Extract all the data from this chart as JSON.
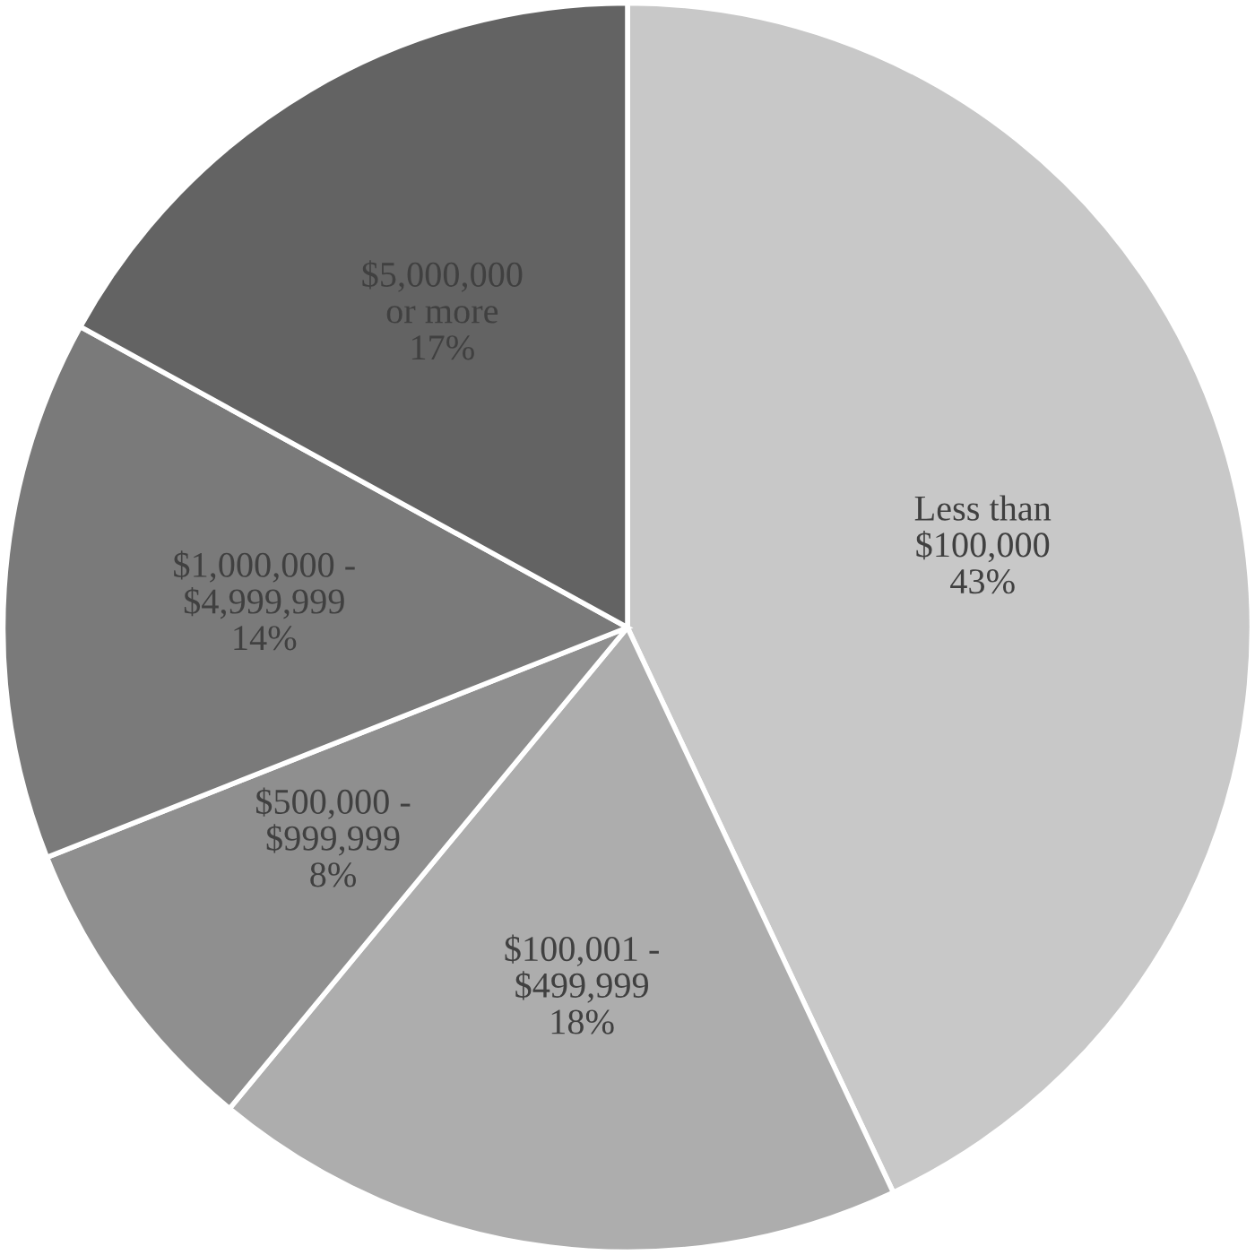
{
  "chart_data": {
    "type": "pie",
    "categories": [
      "Less than\n$100,000",
      "$100,001 -\n$499,999",
      "$500,000 -\n$999,999",
      "$1,000,000 -\n$4,999,999",
      "$5,000,000\nor more"
    ],
    "values": [
      43,
      18,
      8,
      14,
      17
    ],
    "value_labels": [
      "43%",
      "18%",
      "8%",
      "14%",
      "17%"
    ],
    "colors": [
      "#c8c8c8",
      "#adadad",
      "#8f8f8f",
      "#7a7a7a",
      "#636363"
    ],
    "legend": false
  }
}
